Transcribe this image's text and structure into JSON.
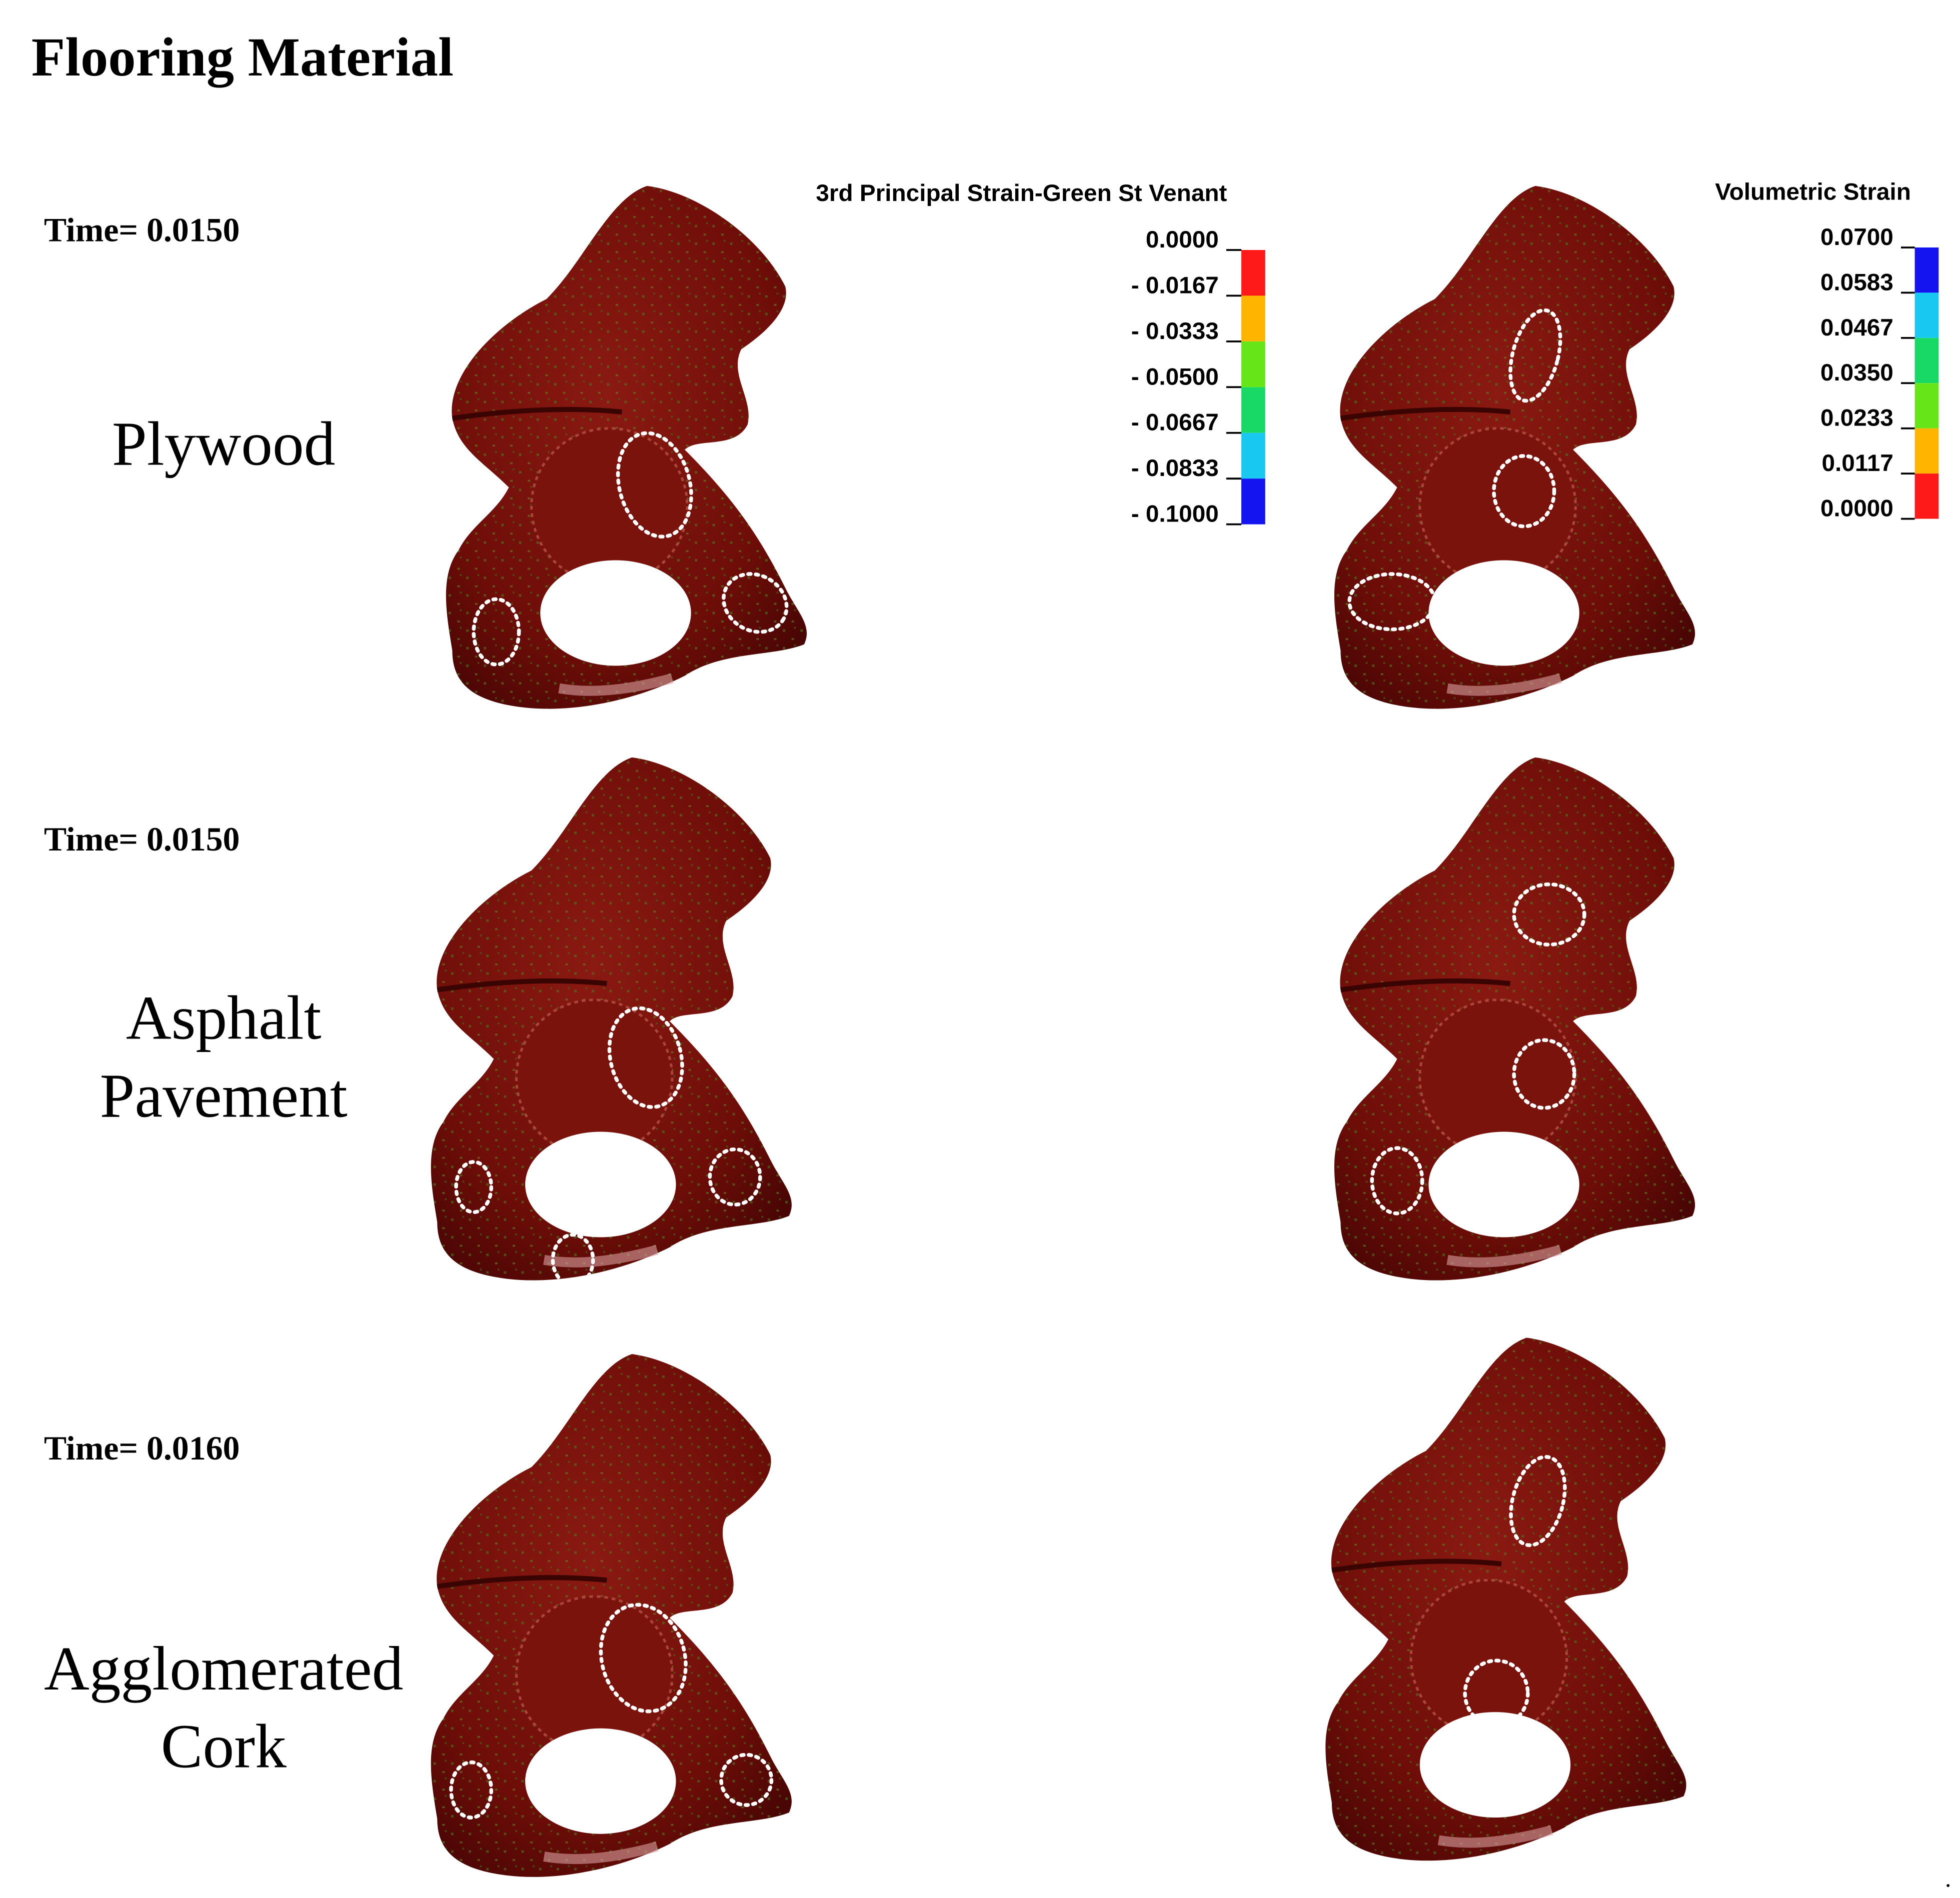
{
  "title": "Flooring Material",
  "rows": [
    {
      "time": "Time= 0.0150",
      "material": [
        "Plywood"
      ]
    },
    {
      "time": "Time= 0.0150",
      "material": [
        "Asphalt",
        "Pavement"
      ]
    },
    {
      "time": "Time= 0.0160",
      "material": [
        "Agglomerated",
        "Cork"
      ]
    }
  ],
  "legends": [
    {
      "title": "3rd Principal Strain-Green St Venant",
      "ticks": [
        "0.0000",
        "- 0.0167",
        "- 0.0333",
        "- 0.0500",
        "- 0.0667",
        "- 0.0833",
        "- 0.1000"
      ],
      "colors": [
        "#ff1a1a",
        "#ffb400",
        "#66e619",
        "#19d966",
        "#19c8f0",
        "#1414f0"
      ]
    },
    {
      "title": "Volumetric Strain",
      "ticks": [
        "0.0700",
        "0.0583",
        "0.0467",
        "0.0350",
        "0.0233",
        "0.0117",
        "0.0000"
      ],
      "colors": [
        "#1414f0",
        "#19c8f0",
        "#19d966",
        "#66e619",
        "#ffb400",
        "#ff1a1a"
      ]
    }
  ],
  "footnote": "."
}
